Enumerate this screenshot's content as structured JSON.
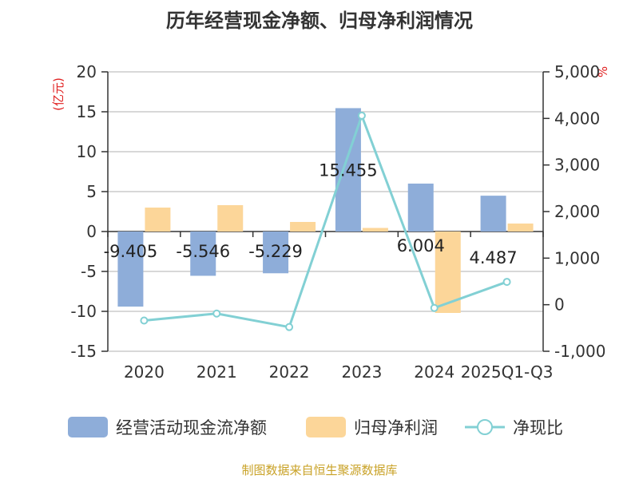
{
  "chart_data": {
    "type": "bar",
    "title": "历年经营现金净额、归母净利润情况",
    "categories": [
      "2020",
      "2021",
      "2022",
      "2023",
      "2024",
      "2025Q1-Q3"
    ],
    "series": [
      {
        "name": "经营活动现金流净额",
        "type": "bar",
        "axis": "left",
        "color": "#8eadd9",
        "values": [
          -9.405,
          -5.546,
          -5.229,
          15.455,
          6.004,
          4.487
        ],
        "labels": [
          "-9.405",
          "-5.546",
          "-5.229",
          "15.455",
          "6.004",
          "4.487"
        ]
      },
      {
        "name": "归母净利润",
        "type": "bar",
        "axis": "left",
        "color": "#fcd699",
        "values": [
          3.0,
          3.3,
          1.2,
          0.45,
          -10.2,
          1.0
        ]
      },
      {
        "name": "净现比",
        "type": "line",
        "axis": "right",
        "color": "#82d0d4",
        "values": [
          -340,
          -190,
          -480,
          4060,
          -70,
          490
        ]
      }
    ],
    "y_left": {
      "unit": "(亿元)",
      "min": -15,
      "max": 20,
      "ticks": [
        20,
        15,
        10,
        5,
        0,
        -5,
        -10,
        -15
      ],
      "tick_labels": [
        "20",
        "15",
        "10",
        "5",
        "0",
        "-5",
        "-10",
        "-15"
      ]
    },
    "y_right": {
      "unit": "%",
      "min": -1000,
      "max": 5000,
      "ticks": [
        5000,
        4000,
        3000,
        2000,
        1000,
        0,
        -1000
      ],
      "tick_labels": [
        "5,000",
        "4,000",
        "3,000",
        "2,000",
        "1,000",
        "0",
        "-1,000"
      ]
    },
    "grid": true,
    "legend_position": "bottom",
    "source": "制图数据来自恒生聚源数据库"
  }
}
